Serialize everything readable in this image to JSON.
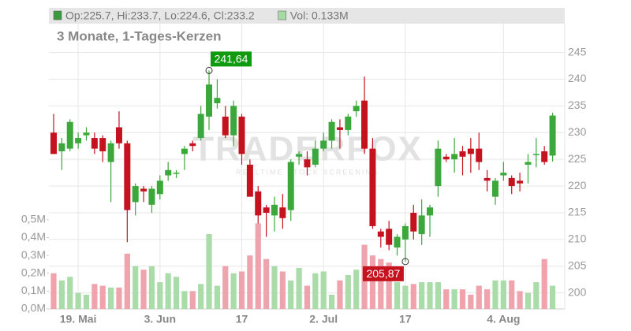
{
  "chart_data": {
    "type": "candlestick",
    "legend": [
      {
        "label": "Op:225.7, Hi:233.7, Lo:224.6, Cl:233.2",
        "color": "#3c9a3c"
      },
      {
        "label": "Vol: 0.133M",
        "color": "#a6dba6"
      }
    ],
    "subtitle": "3 Monate, 1-Tages-Kerzen",
    "watermark": [
      "TRADERFOX",
      "REALTIME STOCK SCREENING"
    ],
    "categories": [
      null,
      null,
      null,
      "19. Mai",
      null,
      null,
      null,
      null,
      null,
      null,
      null,
      null,
      null,
      "3. Jun",
      null,
      null,
      null,
      null,
      null,
      null,
      null,
      null,
      null,
      "17",
      null,
      null,
      null,
      null,
      null,
      null,
      null,
      null,
      null,
      "2. Jul",
      null,
      null,
      null,
      null,
      null,
      null,
      null,
      null,
      null,
      "17",
      null,
      null,
      null,
      null,
      null,
      null,
      null,
      null,
      null,
      null,
      null,
      "4. Aug",
      null,
      null,
      null,
      null,
      null,
      null
    ],
    "open": [
      230,
      226.5,
      227,
      228,
      229.5,
      229,
      229,
      224.5,
      231,
      228,
      217,
      219.5,
      216.5,
      218.5,
      222,
      222.5,
      226,
      228,
      229,
      233,
      235.5,
      233,
      229.5,
      233,
      224,
      219,
      216,
      214.5,
      216,
      215.5,
      225.5,
      225,
      224,
      227,
      228.5,
      231,
      230.5,
      234,
      236,
      227,
      211.5,
      212,
      208.5,
      210,
      215,
      211,
      214.5,
      220,
      225.5,
      225,
      226.5,
      227,
      227,
      221.5,
      218,
      222,
      221.5,
      221,
      224,
      226,
      226.5,
      225.7
    ],
    "high": [
      233.5,
      229,
      232.5,
      230,
      231,
      230,
      229.5,
      228.5,
      234,
      228.5,
      220.5,
      220,
      220,
      222,
      224.5,
      223,
      227.5,
      228.5,
      235,
      241.64,
      240,
      235,
      236,
      233.5,
      225,
      220,
      216.5,
      218,
      218.5,
      225,
      226.5,
      226.5,
      228.5,
      230,
      232.5,
      232.5,
      233.5,
      236,
      240.5,
      229,
      212,
      213.5,
      211,
      213,
      216.5,
      217.5,
      216.5,
      228.5,
      226,
      229,
      227.5,
      229,
      230,
      223,
      221.5,
      224.5,
      222,
      222.5,
      226,
      229,
      227.5,
      233.7
    ],
    "low": [
      226,
      223,
      226.5,
      227,
      228.5,
      226,
      224.5,
      217,
      227,
      209.5,
      214.5,
      217,
      215,
      217.5,
      221,
      221.5,
      223,
      226.5,
      228.5,
      230.5,
      234.5,
      229,
      227.5,
      224,
      218,
      213,
      210.5,
      211.5,
      212,
      213.5,
      224,
      222,
      223.5,
      226.5,
      227,
      227,
      229.5,
      233,
      226,
      212,
      208.5,
      208,
      207,
      205.87,
      210,
      209,
      210.5,
      218,
      224.5,
      222.5,
      222,
      222.5,
      223,
      219,
      216.5,
      221,
      218.5,
      219,
      220.5,
      223.5,
      224,
      224.6
    ],
    "close": [
      226,
      228,
      232,
      229,
      230,
      227,
      226.5,
      228,
      228,
      215.5,
      220,
      219,
      219.5,
      221,
      223,
      222.5,
      227,
      227.5,
      233.5,
      239,
      236.5,
      229.5,
      235,
      226,
      218,
      214.5,
      215,
      216.5,
      214,
      224.5,
      226,
      223.5,
      227,
      228.5,
      232,
      230.5,
      233,
      235,
      227,
      212.5,
      210.5,
      209,
      210.5,
      212.5,
      211.5,
      214.5,
      216,
      227,
      225,
      226,
      225.5,
      226,
      224.5,
      221,
      221,
      222.5,
      220,
      220.5,
      224.5,
      226,
      224.5,
      233.2
    ],
    "volume": {
      "axis": "y2",
      "values": [
        0.2,
        0.16,
        0.18,
        0.09,
        0.08,
        0.14,
        0.13,
        0.12,
        0.12,
        0.31,
        0.24,
        0.22,
        0.24,
        0.15,
        0.2,
        0.18,
        0.1,
        0.1,
        0.14,
        0.42,
        0.13,
        0.24,
        0.2,
        0.21,
        0.3,
        0.48,
        0.28,
        0.24,
        0.21,
        0.16,
        0.23,
        0.13,
        0.2,
        0.21,
        0.08,
        0.16,
        0.19,
        0.22,
        0.36,
        0.3,
        0.28,
        0.26,
        0.15,
        0.13,
        0.14,
        0.15,
        0.15,
        0.15,
        0.11,
        0.11,
        0.11,
        0.08,
        0.13,
        0.11,
        0.16,
        0.16,
        0.16,
        0.1,
        0.09,
        0.15,
        0.28,
        0.13
      ]
    },
    "ylim": [
      197,
      250.4
    ],
    "yticks": [
      200,
      205,
      210,
      215,
      220,
      225,
      230,
      235,
      240,
      245
    ],
    "y2lim": [
      0,
      1.6
    ],
    "y2ticks": [
      {
        "value": 0,
        "label": "0,0M"
      },
      {
        "value": 0.1,
        "label": "0,1M"
      },
      {
        "value": 0.2,
        "label": "0,2M"
      },
      {
        "value": 0.3,
        "label": "0,3M"
      },
      {
        "value": 0.4,
        "label": "0,4M"
      },
      {
        "value": 0.5,
        "label": "0,5M"
      }
    ],
    "colors": {
      "up": "#3ca83c",
      "down": "#c4131f",
      "up_volume": "#a9dca9",
      "down_volume": "#eea3ad"
    },
    "annotations": [
      {
        "value": 241.64,
        "label": "241,64",
        "color": "#109a10"
      },
      {
        "value": 205.87,
        "label": "205,87",
        "color": "#c4131f"
      }
    ],
    "grid": true
  }
}
